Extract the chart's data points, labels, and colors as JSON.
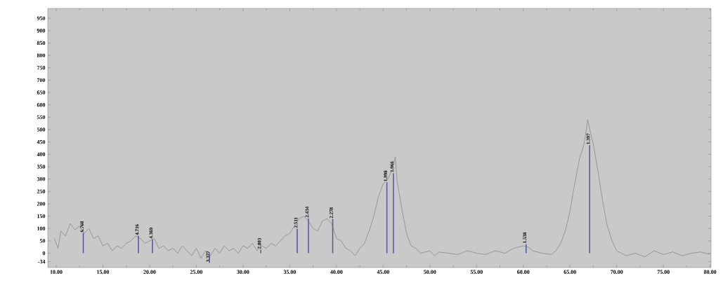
{
  "chart_data": {
    "type": "line",
    "xlim": [
      9.1,
      80.1
    ],
    "ylim": [
      -58,
      990
    ],
    "xticks": [
      {
        "value": 10,
        "label": "10.00"
      },
      {
        "value": 15,
        "label": "15.00"
      },
      {
        "value": 20,
        "label": "20.00"
      },
      {
        "value": 25,
        "label": "25.00"
      },
      {
        "value": 30,
        "label": "30.00"
      },
      {
        "value": 35,
        "label": "35.00"
      },
      {
        "value": 40,
        "label": "40.00"
      },
      {
        "value": 45,
        "label": "45.00"
      },
      {
        "value": 50,
        "label": "50.00"
      },
      {
        "value": 55,
        "label": "55.00"
      },
      {
        "value": 60,
        "label": "60.00"
      },
      {
        "value": 65,
        "label": "65.00"
      },
      {
        "value": 70,
        "label": "70.00"
      },
      {
        "value": 75,
        "label": "75.00"
      },
      {
        "value": 80,
        "label": "80.00"
      }
    ],
    "yticks": [
      -34,
      0,
      50,
      100,
      150,
      200,
      250,
      300,
      350,
      400,
      450,
      500,
      550,
      600,
      650,
      700,
      750,
      800,
      850,
      900,
      950
    ],
    "series": [
      {
        "color": "#808080",
        "x": [
          9.8,
          10.2,
          10.5,
          11,
          11.5,
          12,
          12.5,
          13,
          13.5,
          14,
          14.5,
          15,
          15.5,
          16,
          16.5,
          17,
          17.5,
          18,
          18.5,
          19,
          19.5,
          20,
          20.5,
          21,
          21.5,
          22,
          22.5,
          23,
          23.5,
          24,
          24.5,
          25,
          25.5,
          26,
          26.5,
          27,
          27.5,
          28,
          28.5,
          29,
          29.5,
          30,
          30.5,
          31,
          31.5,
          32,
          32.5,
          33,
          33.5,
          34,
          34.5,
          35,
          35.5,
          36,
          36.5,
          37,
          37.5,
          38,
          38.5,
          39,
          39.5,
          40,
          40.5,
          41,
          41.5,
          42,
          42.5,
          43,
          43.5,
          44,
          44.5,
          45,
          45.5,
          46,
          46.3,
          46.5,
          47,
          47.5,
          48,
          48.5,
          49,
          50,
          50.5,
          51,
          52,
          53,
          54,
          55,
          56,
          57,
          58,
          59,
          60,
          60.5,
          61,
          62,
          63,
          63.5,
          64,
          64.5,
          65,
          65.5,
          66,
          66.5,
          66.9,
          67.3,
          67.5,
          68,
          68.5,
          69,
          69.5,
          70,
          71,
          72,
          73,
          74,
          75,
          76,
          77,
          78,
          79,
          80
        ],
        "values": [
          60,
          20,
          90,
          70,
          120,
          95,
          110,
          80,
          100,
          60,
          70,
          30,
          40,
          10,
          30,
          20,
          40,
          50,
          70,
          60,
          40,
          50,
          60,
          20,
          30,
          10,
          20,
          0,
          30,
          10,
          -10,
          20,
          -20,
          10,
          -10,
          20,
          0,
          30,
          10,
          20,
          0,
          30,
          20,
          40,
          10,
          30,
          20,
          40,
          30,
          50,
          70,
          80,
          110,
          140,
          150,
          130,
          100,
          90,
          130,
          140,
          120,
          60,
          50,
          20,
          10,
          -10,
          20,
          40,
          90,
          150,
          230,
          280,
          300,
          340,
          390,
          290,
          180,
          80,
          30,
          20,
          0,
          10,
          -10,
          5,
          0,
          -5,
          10,
          0,
          -5,
          10,
          0,
          20,
          30,
          25,
          10,
          0,
          -5,
          10,
          40,
          90,
          170,
          280,
          380,
          440,
          540,
          470,
          440,
          330,
          210,
          110,
          50,
          10,
          -10,
          0,
          -15,
          10,
          -5,
          5,
          -10,
          0,
          5,
          -5
        ]
      },
      {
        "type": "bar",
        "color": "#5a5aa0",
        "x": [
          12.9,
          18.8,
          20.3,
          26.4,
          31.9,
          35.8,
          37.0,
          39.6,
          45.4,
          46.1,
          60.3,
          67.1
        ],
        "values": [
          82,
          70,
          56,
          -39,
          14,
          99,
          141,
          138,
          287,
          324,
          37,
          437
        ]
      }
    ],
    "annotations": [
      {
        "text": "6.768",
        "x": 12.9,
        "y": 82
      },
      {
        "text": "4.716",
        "x": 18.8,
        "y": 70
      },
      {
        "text": "4.369",
        "x": 20.3,
        "y": 56
      },
      {
        "text": "3.377",
        "x": 26.4,
        "y": -39
      },
      {
        "text": "2.803",
        "x": 31.9,
        "y": 14
      },
      {
        "text": "2.511",
        "x": 35.8,
        "y": 99
      },
      {
        "text": "2.434",
        "x": 37.0,
        "y": 141
      },
      {
        "text": "2.278",
        "x": 39.6,
        "y": 138
      },
      {
        "text": "1.998",
        "x": 45.4,
        "y": 287
      },
      {
        "text": "1.966",
        "x": 46.1,
        "y": 324
      },
      {
        "text": "1.538",
        "x": 60.3,
        "y": 37
      },
      {
        "text": "1.397",
        "x": 67.1,
        "y": 437
      }
    ]
  }
}
